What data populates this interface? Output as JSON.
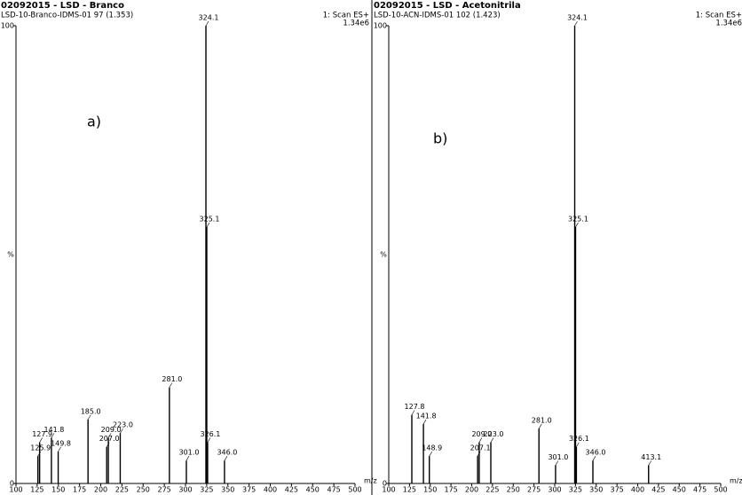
{
  "chart_data": [
    {
      "type": "stick",
      "title": "02092015 - LSD - Branco",
      "subtitle": "LSD-10-Branco-IDMS-01  97 (1.353)",
      "scan": "1: Scan ES+",
      "intensity": "1.34e6",
      "panel_label": "a)",
      "x_label": "m/z",
      "y_label": "%",
      "color": "#000000",
      "x": [
        125.9,
        127.9,
        141.8,
        149.8,
        185.0,
        207.0,
        209.0,
        223.0,
        281.0,
        301.0,
        324.1,
        325.1,
        326.1,
        346.0
      ],
      "x_labels": [
        "125.9",
        "127.9",
        "141.8",
        "149.8",
        "185.0",
        "207.0",
        "209.0",
        "223.0",
        "281.0",
        "301.0",
        "324.1",
        "325.1",
        "326.1",
        "346.0"
      ],
      "values": [
        6,
        9,
        10,
        7,
        14,
        8,
        10,
        11,
        21,
        5,
        100,
        56,
        9,
        5
      ],
      "xlim": [
        100,
        500
      ],
      "ylim": [
        0,
        100
      ],
      "xticks": [
        100,
        125,
        150,
        175,
        200,
        225,
        250,
        275,
        300,
        325,
        350,
        375,
        400,
        425,
        450,
        475,
        500
      ],
      "yticks": [
        0,
        100
      ]
    },
    {
      "type": "stick",
      "title": "02092015 - LSD - Acetonitrila",
      "subtitle": "LSD-10-ACN-IDMS-01  102 (1.423)",
      "scan": "1: Scan ES+",
      "intensity": "1.34e6",
      "panel_label": "b)",
      "x_label": "m/z",
      "y_label": "%",
      "color": "#000000",
      "x": [
        127.8,
        141.8,
        148.9,
        207.1,
        209.0,
        223.0,
        281.0,
        301.0,
        324.1,
        325.1,
        326.1,
        346.0,
        413.1
      ],
      "x_labels": [
        "127.8",
        "141.8",
        "148.9",
        "207.1",
        "209.0",
        "223.0",
        "281.0",
        "301.0",
        "324.1",
        "325.1",
        "326.1",
        "346.0",
        "413.1"
      ],
      "values": [
        15,
        13,
        6,
        6,
        9,
        9,
        12,
        4,
        100,
        56,
        8,
        5,
        4
      ],
      "xlim": [
        100,
        500
      ],
      "ylim": [
        0,
        100
      ],
      "xticks": [
        100,
        125,
        150,
        175,
        200,
        225,
        250,
        275,
        300,
        325,
        350,
        375,
        400,
        425,
        450,
        475,
        500
      ],
      "yticks": [
        0,
        100
      ]
    }
  ]
}
